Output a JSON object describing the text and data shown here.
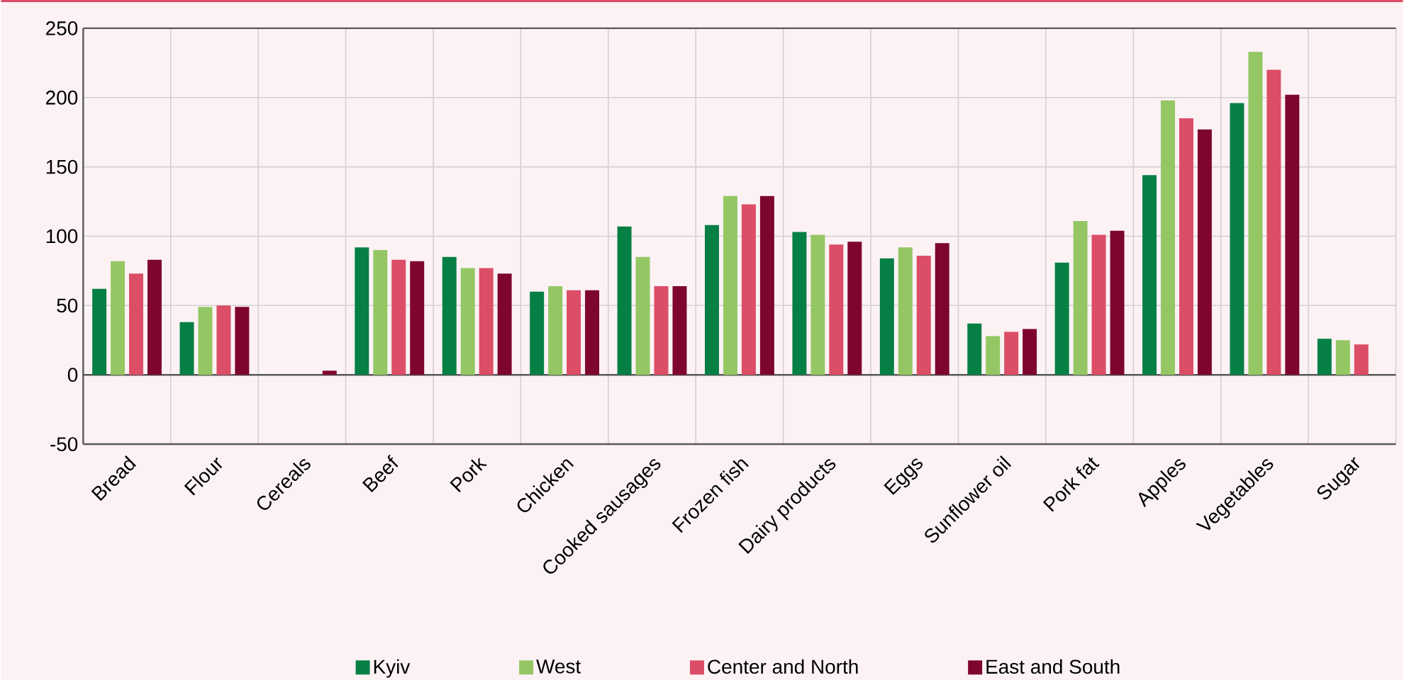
{
  "chart_data": {
    "type": "bar",
    "categories": [
      "Bread",
      "Flour",
      "Cereals",
      "Beef",
      "Pork",
      "Chicken",
      "Cooked sausages",
      "Frozen fish",
      "Dairy products",
      "Eggs",
      "Sunflower oil",
      "Pork fat",
      "Apples",
      "Vegetables",
      "Sugar"
    ],
    "series": [
      {
        "name": "Kyiv",
        "color": "#067f45",
        "values": [
          62,
          38,
          0,
          92,
          85,
          60,
          107,
          108,
          103,
          84,
          37,
          81,
          144,
          196,
          26
        ]
      },
      {
        "name": "West",
        "color": "#94c764",
        "values": [
          82,
          49,
          0,
          90,
          77,
          64,
          85,
          129,
          101,
          92,
          28,
          111,
          198,
          233,
          25
        ]
      },
      {
        "name": "Center and North",
        "color": "#dc4d67",
        "values": [
          73,
          50,
          0,
          83,
          77,
          61,
          64,
          123,
          94,
          86,
          31,
          101,
          185,
          220,
          22
        ]
      },
      {
        "name": "East and South",
        "color": "#7e0530",
        "values": [
          83,
          49,
          3,
          82,
          73,
          61,
          64,
          129,
          96,
          95,
          33,
          104,
          177,
          202,
          null
        ]
      }
    ],
    "ylim": [
      -50,
      250
    ],
    "yticks": [
      -50,
      0,
      50,
      100,
      150,
      200,
      250
    ],
    "grid": true,
    "legend": "bottom"
  }
}
